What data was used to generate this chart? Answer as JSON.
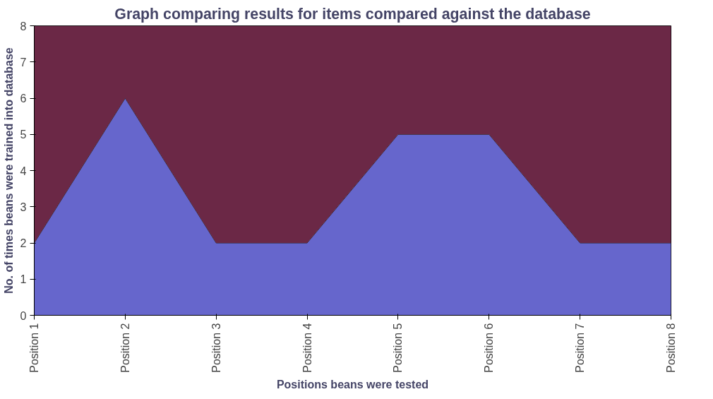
{
  "chart_data": {
    "type": "area",
    "stacked": true,
    "title": "Graph comparing results for items compared against the database",
    "xlabel": "Positions beans were tested",
    "ylabel": "No. of times beans were trained into database",
    "categories": [
      "Position 1",
      "Position 2",
      "Position 3",
      "Position 4",
      "Position 5",
      "Position 6",
      "Position 7",
      "Position 8"
    ],
    "series": [
      {
        "color": "#6666cc",
        "values": [
          2,
          6,
          2,
          2,
          5,
          5,
          2,
          2
        ]
      },
      {
        "color": "#6b2846",
        "values": [
          6,
          2,
          6,
          6,
          3,
          3,
          6,
          6
        ]
      }
    ],
    "ylim": [
      0,
      8
    ],
    "yticks": [
      0,
      1,
      2,
      3,
      4,
      5,
      6,
      7,
      8
    ],
    "grid": false
  }
}
